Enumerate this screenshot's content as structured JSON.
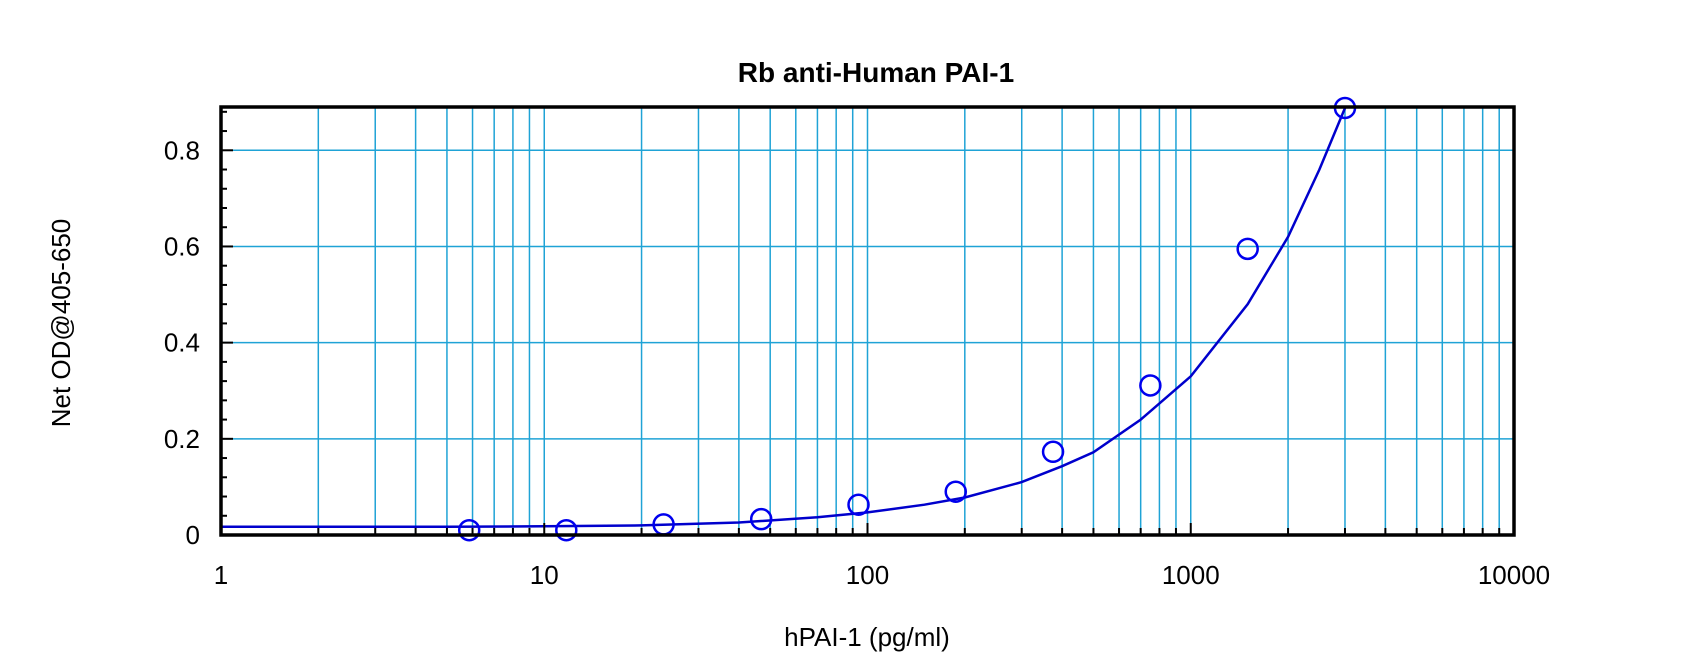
{
  "chart_data": {
    "type": "scatter",
    "title": "Rb anti-Human PAI-1",
    "xlabel": "hPAI-1 (pg/ml)",
    "ylabel": "Net OD@405-650",
    "x_scale": "log",
    "xlim": [
      1,
      10000
    ],
    "ylim": [
      0,
      0.89
    ],
    "x_ticks": [
      1,
      10,
      100,
      1000,
      10000
    ],
    "x_tick_labels": [
      "1",
      "10",
      "100",
      "1000",
      "10000"
    ],
    "y_ticks": [
      0,
      0.2,
      0.4,
      0.6,
      0.8
    ],
    "y_tick_labels": [
      "0",
      "0.2",
      "0.4",
      "0.6",
      "0.8"
    ],
    "grid": true,
    "colors": {
      "grid": "#1fa3d6",
      "series": "#0000ee",
      "frame": "#000000"
    },
    "series": [
      {
        "marker": "open-circle",
        "x": [
          5.86,
          11.7,
          23.4,
          46.9,
          93.8,
          187.5,
          375,
          750,
          1500,
          3000
        ],
        "y": [
          0.01,
          0.01,
          0.022,
          0.033,
          0.063,
          0.09,
          0.173,
          0.311,
          0.595,
          0.888
        ]
      }
    ],
    "fit_curve": {
      "x": [
        1,
        2,
        5,
        10,
        20,
        40,
        70,
        100,
        150,
        200,
        300,
        400,
        500,
        700,
        1000,
        1500,
        2000,
        2500,
        3000
      ],
      "y": [
        0.017,
        0.017,
        0.017,
        0.018,
        0.02,
        0.026,
        0.037,
        0.047,
        0.063,
        0.078,
        0.11,
        0.143,
        0.172,
        0.24,
        0.33,
        0.48,
        0.62,
        0.76,
        0.888
      ]
    }
  }
}
